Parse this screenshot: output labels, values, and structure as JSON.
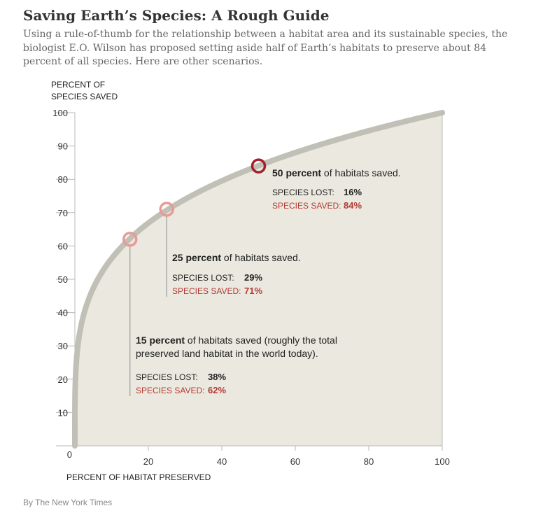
{
  "header": {
    "title": "Saving Earth’s Species: A Rough Guide",
    "subtitle": "Using a rule-of-thumb for the relationship between a habitat area and its sustainable species, the biologist E.O. Wilson has proposed setting aside half of Earth’s habitats to preserve about 84 percent of all species. Here are other scenarios."
  },
  "credit": "By The New York Times",
  "colors": {
    "area_fill": "#ebe9df",
    "curve": "#c1c0b6",
    "axis": "#b8b8b8",
    "marker_light": "#e89a96",
    "marker_dark": "#a5202a",
    "saved_text": "#b53a35"
  },
  "chart_data": {
    "type": "area",
    "xlabel": "PERCENT OF HABITAT PRESERVED",
    "ylabel": [
      "PERCENT OF",
      "SPECIES SAVED"
    ],
    "xlim": [
      0,
      100
    ],
    "ylim": [
      0,
      100
    ],
    "x_ticks": [
      0,
      20,
      40,
      60,
      80,
      100
    ],
    "y_ticks": [
      0,
      10,
      20,
      30,
      40,
      50,
      60,
      70,
      80,
      90,
      100
    ],
    "curve_exponent": 0.25,
    "grid": false,
    "x": [
      0,
      1,
      2,
      5,
      10,
      15,
      20,
      25,
      30,
      40,
      50,
      60,
      70,
      80,
      90,
      100
    ],
    "y": [
      0,
      31.6,
      37.6,
      47.3,
      56.2,
      62.2,
      66.9,
      70.7,
      74.0,
      79.5,
      84.1,
      88.0,
      91.5,
      94.6,
      97.4,
      100
    ],
    "highlights": [
      {
        "x": 15,
        "y": 62,
        "text_bold": "15 percent",
        "text_rest": " of habitats saved (roughly the total",
        "text_line2": "preserved land habitat in the world today).",
        "lost_label": "SPECIES LOST:",
        "lost_value": "38%",
        "saved_label": "SPECIES SAVED:",
        "saved_value": "62%"
      },
      {
        "x": 25,
        "y": 71,
        "text_bold": "25 percent",
        "text_rest": " of habitats saved.",
        "lost_label": "SPECIES LOST:",
        "lost_value": "29%",
        "saved_label": "SPECIES SAVED:",
        "saved_value": "71%"
      },
      {
        "x": 50,
        "y": 84,
        "text_bold": "50 percent",
        "text_rest": " of habitats saved.",
        "lost_label": "SPECIES LOST:",
        "lost_value": "16%",
        "saved_label": "SPECIES SAVED:",
        "saved_value": "84%"
      }
    ]
  }
}
